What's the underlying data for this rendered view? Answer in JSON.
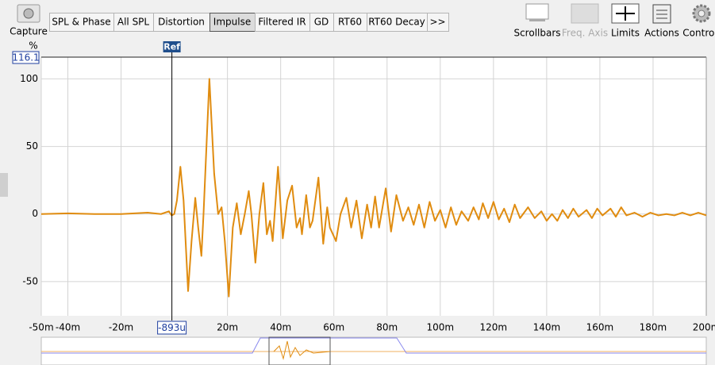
{
  "toolbar": {
    "capture": "Capture",
    "tabs": [
      "SPL & Phase",
      "All SPL",
      "Distortion",
      "Impulse",
      "Filtered IR",
      "GD",
      "RT60",
      "RT60 Decay",
      ">>"
    ],
    "selected_tab": "Impulse",
    "buttons": [
      "Scrollbars",
      "Freq. Axis",
      "Limits",
      "Actions",
      "Control"
    ],
    "disabled_button": "Freq. Axis"
  },
  "chart_data": {
    "type": "line",
    "ylabel": "%",
    "color": "#e08c10",
    "grid": true,
    "cursor": {
      "name": "Ref",
      "value": -0.893,
      "label": "-893u"
    },
    "xlim": [
      -50,
      200
    ],
    "xticks": [
      {
        "value": -50,
        "label": "-50m"
      },
      {
        "value": -40,
        "label": "-40m"
      },
      {
        "value": -20,
        "label": "-20m"
      },
      {
        "value": 20,
        "label": "20m"
      },
      {
        "value": 40,
        "label": "40m"
      },
      {
        "value": 60,
        "label": "60m"
      },
      {
        "value": 80,
        "label": "80m"
      },
      {
        "value": 100,
        "label": "100m"
      },
      {
        "value": 120,
        "label": "120m"
      },
      {
        "value": 140,
        "label": "140m"
      },
      {
        "value": 160,
        "label": "160m"
      },
      {
        "value": 180,
        "label": "180m"
      },
      {
        "value": 200,
        "label": "200m"
      }
    ],
    "ylim": [
      -75.3,
      116.1
    ],
    "yticks": [
      -50,
      0,
      50,
      100
    ],
    "x": [
      -50,
      -40,
      -30,
      -20,
      -10,
      -5,
      -2,
      -1,
      0,
      1,
      2.3,
      3.5,
      5.2,
      6.5,
      7.9,
      9,
      10.2,
      11,
      13.2,
      15,
      16.5,
      17.8,
      19,
      20.5,
      22,
      23.5,
      25,
      26.5,
      28,
      29,
      30.5,
      32,
      33.5,
      34.8,
      36,
      37,
      39,
      40.8,
      42.5,
      44.3,
      46,
      47.3,
      48,
      49.6,
      51,
      52,
      54.2,
      56,
      57.5,
      58.5,
      60.8,
      62.5,
      64.7,
      66.5,
      68.5,
      70.5,
      72.5,
      74,
      75.5,
      77,
      79.5,
      81.5,
      83.5,
      86,
      88,
      90,
      92,
      94,
      96,
      98,
      100,
      102,
      104,
      106,
      108,
      110.5,
      112.5,
      114.5,
      116,
      118,
      120,
      122,
      124,
      126,
      128,
      130,
      133,
      135.5,
      138,
      140,
      142,
      144,
      146,
      148,
      150,
      152,
      155,
      157,
      159,
      161,
      164,
      166,
      168,
      170,
      173,
      176,
      179,
      182,
      185,
      188,
      191,
      194,
      197,
      200
    ],
    "values": [
      0,
      0.5,
      0,
      0,
      1,
      0,
      2,
      -1,
      0,
      10,
      35,
      10,
      -57,
      -20,
      12,
      -10,
      -31,
      0,
      100,
      30,
      0,
      5,
      -20,
      -61,
      -10,
      8,
      -15,
      0,
      17,
      0,
      -36,
      0,
      23,
      -15,
      -5,
      -20,
      35,
      -18,
      10,
      21,
      -10,
      -3,
      -15,
      14,
      -10,
      -5,
      27,
      -22,
      5,
      -10,
      -20,
      0,
      12,
      -10,
      10,
      -18,
      7,
      -10,
      13,
      -10,
      19,
      -13,
      14,
      -5,
      5,
      -8,
      7,
      -10,
      9,
      -5,
      3,
      -10,
      5,
      -8,
      2,
      -5,
      5,
      -4,
      8,
      -3,
      9,
      -4,
      4,
      -6,
      7,
      -3,
      5,
      -3,
      2,
      -5,
      0,
      -5,
      3,
      -3,
      4,
      -2,
      3,
      -3,
      4,
      -1,
      4,
      -2,
      5,
      -1,
      1,
      -2,
      1,
      -1,
      0,
      -1,
      1,
      -1,
      1,
      -1
    ]
  }
}
